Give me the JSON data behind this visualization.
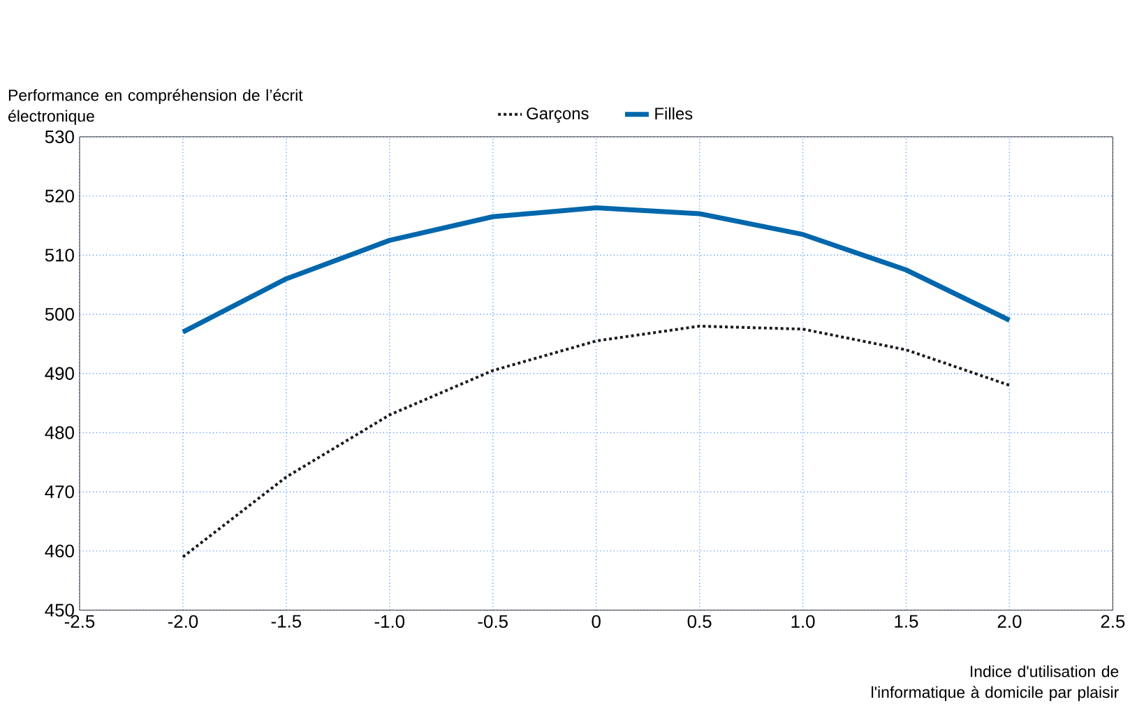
{
  "chart_data": {
    "type": "line",
    "xlabel": "Indice d'utilisation de l'informatique à domicile par plaisir",
    "ylabel": "Performance en compréhension de l’écrit électronique",
    "x": [
      -2.0,
      -1.5,
      -1.0,
      -0.5,
      0,
      0.5,
      1.0,
      1.5,
      2.0
    ],
    "series": [
      {
        "name": "Garçons",
        "color": "#1a1a1a",
        "line_style": "dotted",
        "values": [
          459,
          472.5,
          483,
          490.5,
          495.5,
          498,
          497.5,
          494,
          488
        ]
      },
      {
        "name": "Filles",
        "color": "#0067ac",
        "line_style": "solid",
        "values": [
          497,
          506,
          512.5,
          516.5,
          518,
          517,
          513.5,
          507.5,
          499
        ]
      }
    ],
    "xlim": [
      -2.5,
      2.5
    ],
    "xticks": [
      -2.5,
      {
        "value": -2.0,
        "label": "-2.0"
      },
      -1.5,
      {
        "value": -1.0,
        "label": "-1.0"
      },
      -0.5,
      0,
      0.5,
      {
        "value": 1.0,
        "label": "1.0"
      },
      1.5,
      {
        "value": 2.0,
        "label": "2.0"
      },
      2.5
    ],
    "ylim": [
      450,
      530
    ],
    "yticks": [
      450,
      460,
      470,
      480,
      490,
      500,
      510,
      520,
      530
    ],
    "grid": true,
    "legend": "top",
    "marker": "none"
  }
}
